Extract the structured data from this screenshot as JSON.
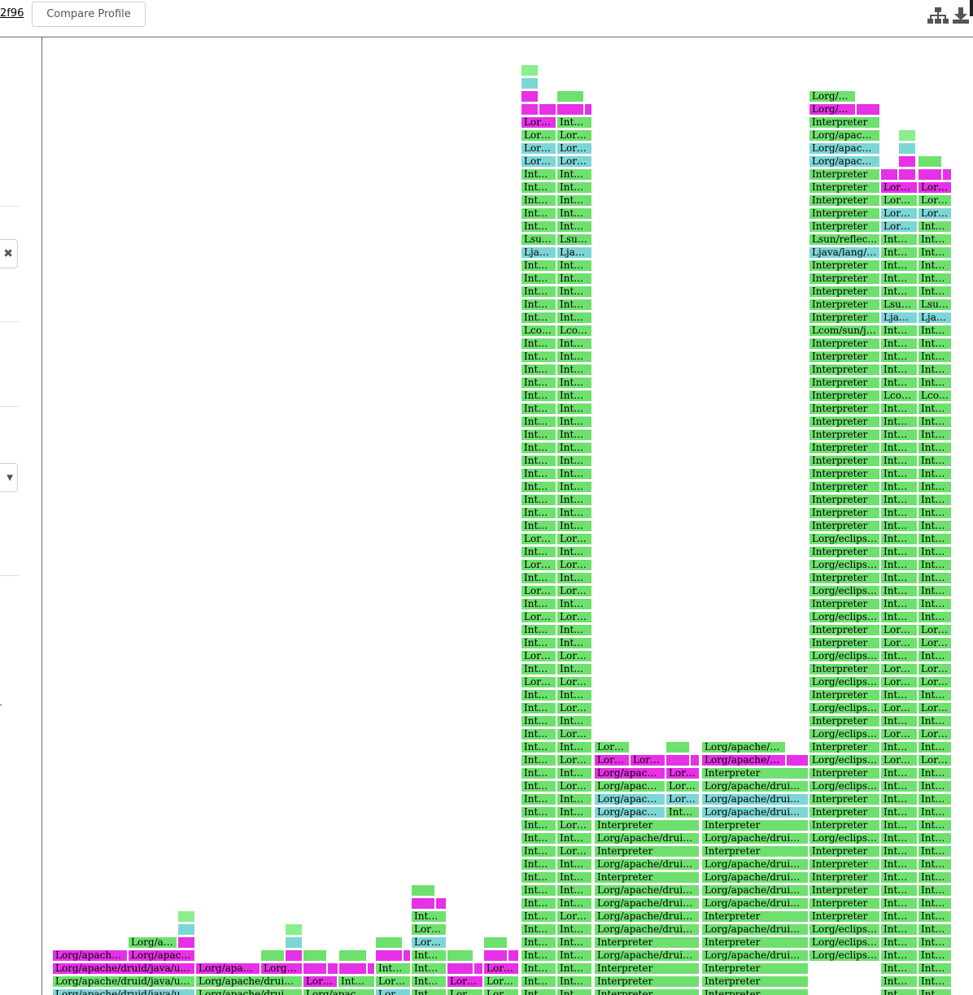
{
  "header": {
    "link_text": "2f96",
    "compare_button": "Compare Profile",
    "icons": [
      "hierarchy-icon",
      "download-icon"
    ]
  },
  "colors": {
    "green": "#6ee06e",
    "magenta": "#e631e6",
    "cyan": "#7dd6d6",
    "lightgreen": "#8aee8a"
  },
  "flame": {
    "columns": [
      {
        "x": 64,
        "w": 93,
        "base": 1207,
        "stack": [
          [
            "m",
            "Lorg/apach…"
          ],
          [
            "m",
            "Lorg/apache/druid/java/u…"
          ],
          [
            "g",
            "Lorg/apache/druid/java/u…"
          ],
          [
            "c",
            "Lorg/apache/druid/java/u…"
          ]
        ],
        "dir": "down"
      }
    ]
  }
}
